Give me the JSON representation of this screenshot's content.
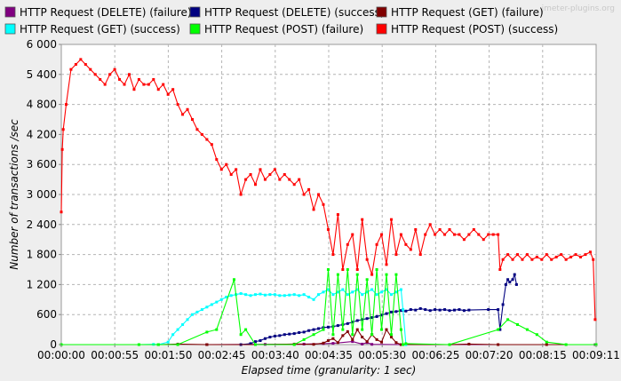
{
  "watermark": "jmeter-plugins.org",
  "chart_data": {
    "type": "line",
    "title": "",
    "xlabel": "Elapsed time (granularity: 1 sec)",
    "ylabel": "Number of transactions /sec",
    "ylim": [
      0,
      6000
    ],
    "xlim_seconds": [
      0,
      551
    ],
    "y_ticks": [
      "0",
      "600",
      "1 200",
      "1 800",
      "2 400",
      "3 000",
      "3 600",
      "4 200",
      "4 800",
      "5 400",
      "6 000"
    ],
    "x_ticks": [
      "00:00:00",
      "00:00:55",
      "00:01:50",
      "00:02:45",
      "00:03:40",
      "00:04:35",
      "00:05:30",
      "00:06:25",
      "00:07:20",
      "00:08:15",
      "00:09:11"
    ],
    "grid": true,
    "legend_position": "top",
    "series": [
      {
        "name": "HTTP Request (DELETE) (failure)",
        "color": "#800080",
        "points": [
          [
            150,
            0
          ],
          [
            210,
            5
          ],
          [
            250,
            10
          ],
          [
            270,
            20
          ],
          [
            280,
            25
          ],
          [
            300,
            60
          ],
          [
            310,
            10
          ],
          [
            315,
            40
          ],
          [
            320,
            5
          ],
          [
            350,
            0
          ],
          [
            550,
            0
          ]
        ]
      },
      {
        "name": "HTTP Request (DELETE) (success)",
        "color": "#000080",
        "points": [
          [
            150,
            0
          ],
          [
            185,
            0
          ],
          [
            195,
            20
          ],
          [
            200,
            60
          ],
          [
            205,
            80
          ],
          [
            210,
            120
          ],
          [
            215,
            150
          ],
          [
            220,
            170
          ],
          [
            225,
            180
          ],
          [
            230,
            200
          ],
          [
            235,
            210
          ],
          [
            240,
            220
          ],
          [
            245,
            240
          ],
          [
            250,
            250
          ],
          [
            255,
            280
          ],
          [
            260,
            300
          ],
          [
            265,
            320
          ],
          [
            270,
            340
          ],
          [
            275,
            350
          ],
          [
            280,
            360
          ],
          [
            285,
            380
          ],
          [
            290,
            400
          ],
          [
            295,
            420
          ],
          [
            300,
            450
          ],
          [
            305,
            480
          ],
          [
            310,
            500
          ],
          [
            315,
            520
          ],
          [
            320,
            540
          ],
          [
            325,
            560
          ],
          [
            330,
            590
          ],
          [
            335,
            620
          ],
          [
            340,
            650
          ],
          [
            345,
            660
          ],
          [
            350,
            680
          ],
          [
            355,
            670
          ],
          [
            360,
            700
          ],
          [
            365,
            690
          ],
          [
            370,
            720
          ],
          [
            375,
            700
          ],
          [
            380,
            680
          ],
          [
            385,
            700
          ],
          [
            390,
            690
          ],
          [
            395,
            700
          ],
          [
            400,
            680
          ],
          [
            405,
            690
          ],
          [
            410,
            700
          ],
          [
            415,
            680
          ],
          [
            420,
            690
          ],
          [
            440,
            700
          ],
          [
            450,
            700
          ],
          [
            452,
            300
          ],
          [
            455,
            800
          ],
          [
            458,
            1200
          ],
          [
            460,
            1300
          ],
          [
            462,
            1250
          ],
          [
            465,
            1300
          ],
          [
            467,
            1400
          ],
          [
            469,
            1200
          ]
        ]
      },
      {
        "name": "HTTP Request (GET) (failure)",
        "color": "#800000",
        "points": [
          [
            0,
            0
          ],
          [
            100,
            0
          ],
          [
            120,
            10
          ],
          [
            150,
            0
          ],
          [
            200,
            0
          ],
          [
            240,
            10
          ],
          [
            260,
            5
          ],
          [
            270,
            30
          ],
          [
            275,
            80
          ],
          [
            280,
            120
          ],
          [
            285,
            40
          ],
          [
            290,
            180
          ],
          [
            295,
            260
          ],
          [
            300,
            100
          ],
          [
            305,
            300
          ],
          [
            310,
            150
          ],
          [
            315,
            60
          ],
          [
            320,
            200
          ],
          [
            325,
            100
          ],
          [
            330,
            50
          ],
          [
            335,
            300
          ],
          [
            340,
            150
          ],
          [
            345,
            40
          ],
          [
            350,
            0
          ],
          [
            400,
            0
          ],
          [
            420,
            10
          ],
          [
            450,
            0
          ],
          [
            500,
            0
          ],
          [
            551,
            0
          ]
        ]
      },
      {
        "name": "HTTP Request (GET) (success)",
        "color": "#00ffff",
        "points": [
          [
            0,
            0
          ],
          [
            80,
            0
          ],
          [
            95,
            5
          ],
          [
            100,
            0
          ],
          [
            110,
            50
          ],
          [
            115,
            200
          ],
          [
            120,
            300
          ],
          [
            125,
            400
          ],
          [
            130,
            500
          ],
          [
            135,
            600
          ],
          [
            140,
            650
          ],
          [
            145,
            700
          ],
          [
            150,
            750
          ],
          [
            155,
            800
          ],
          [
            160,
            850
          ],
          [
            165,
            900
          ],
          [
            170,
            950
          ],
          [
            175,
            980
          ],
          [
            180,
            1000
          ],
          [
            185,
            1020
          ],
          [
            190,
            1000
          ],
          [
            195,
            980
          ],
          [
            200,
            1000
          ],
          [
            205,
            1010
          ],
          [
            210,
            990
          ],
          [
            215,
            1000
          ],
          [
            220,
            1000
          ],
          [
            225,
            980
          ],
          [
            230,
            980
          ],
          [
            235,
            990
          ],
          [
            240,
            1000
          ],
          [
            245,
            980
          ],
          [
            250,
            1000
          ],
          [
            255,
            950
          ],
          [
            260,
            900
          ],
          [
            265,
            1000
          ],
          [
            270,
            1050
          ],
          [
            275,
            1100
          ],
          [
            280,
            1000
          ],
          [
            285,
            1050
          ],
          [
            290,
            1100
          ],
          [
            295,
            1000
          ],
          [
            300,
            1050
          ],
          [
            305,
            1100
          ],
          [
            310,
            1000
          ],
          [
            315,
            1050
          ],
          [
            320,
            1100
          ],
          [
            325,
            1000
          ],
          [
            330,
            1050
          ],
          [
            335,
            1100
          ],
          [
            340,
            1000
          ],
          [
            345,
            1050
          ],
          [
            350,
            1100
          ],
          [
            352,
            700
          ],
          [
            355,
            0
          ]
        ]
      },
      {
        "name": "HTTP Request (POST) (failure)",
        "color": "#00ff00",
        "points": [
          [
            0,
            0
          ],
          [
            80,
            0
          ],
          [
            100,
            0
          ],
          [
            120,
            0
          ],
          [
            150,
            250
          ],
          [
            160,
            300
          ],
          [
            178,
            1300
          ],
          [
            185,
            200
          ],
          [
            190,
            300
          ],
          [
            200,
            0
          ],
          [
            240,
            0
          ],
          [
            250,
            100
          ],
          [
            260,
            200
          ],
          [
            270,
            300
          ],
          [
            275,
            1500
          ],
          [
            280,
            200
          ],
          [
            285,
            1400
          ],
          [
            290,
            300
          ],
          [
            295,
            1500
          ],
          [
            300,
            200
          ],
          [
            305,
            1400
          ],
          [
            310,
            300
          ],
          [
            315,
            1300
          ],
          [
            320,
            200
          ],
          [
            325,
            1500
          ],
          [
            330,
            300
          ],
          [
            335,
            1400
          ],
          [
            340,
            200
          ],
          [
            345,
            1400
          ],
          [
            350,
            300
          ],
          [
            352,
            0
          ],
          [
            355,
            20
          ],
          [
            400,
            0
          ],
          [
            450,
            300
          ],
          [
            460,
            500
          ],
          [
            470,
            400
          ],
          [
            480,
            300
          ],
          [
            490,
            200
          ],
          [
            500,
            50
          ],
          [
            520,
            0
          ],
          [
            551,
            0
          ]
        ]
      },
      {
        "name": "HTTP Request (POST) (success)",
        "color": "#ff0000",
        "points": [
          [
            0,
            2650
          ],
          [
            1,
            3900
          ],
          [
            2,
            4300
          ],
          [
            5,
            4800
          ],
          [
            10,
            5500
          ],
          [
            15,
            5600
          ],
          [
            20,
            5700
          ],
          [
            25,
            5600
          ],
          [
            30,
            5500
          ],
          [
            35,
            5400
          ],
          [
            40,
            5300
          ],
          [
            45,
            5200
          ],
          [
            50,
            5400
          ],
          [
            55,
            5500
          ],
          [
            60,
            5300
          ],
          [
            65,
            5200
          ],
          [
            70,
            5400
          ],
          [
            75,
            5100
          ],
          [
            80,
            5300
          ],
          [
            85,
            5200
          ],
          [
            90,
            5200
          ],
          [
            95,
            5300
          ],
          [
            100,
            5100
          ],
          [
            105,
            5200
          ],
          [
            110,
            5000
          ],
          [
            115,
            5100
          ],
          [
            120,
            4800
          ],
          [
            125,
            4600
          ],
          [
            130,
            4700
          ],
          [
            135,
            4500
          ],
          [
            140,
            4300
          ],
          [
            145,
            4200
          ],
          [
            150,
            4100
          ],
          [
            155,
            4000
          ],
          [
            160,
            3700
          ],
          [
            165,
            3500
          ],
          [
            170,
            3600
          ],
          [
            175,
            3400
          ],
          [
            180,
            3500
          ],
          [
            185,
            3000
          ],
          [
            190,
            3300
          ],
          [
            195,
            3400
          ],
          [
            200,
            3200
          ],
          [
            205,
            3500
          ],
          [
            210,
            3300
          ],
          [
            215,
            3400
          ],
          [
            220,
            3500
          ],
          [
            225,
            3300
          ],
          [
            230,
            3400
          ],
          [
            235,
            3300
          ],
          [
            240,
            3200
          ],
          [
            245,
            3300
          ],
          [
            250,
            3000
          ],
          [
            255,
            3100
          ],
          [
            260,
            2700
          ],
          [
            265,
            3000
          ],
          [
            270,
            2800
          ],
          [
            275,
            2300
          ],
          [
            280,
            1800
          ],
          [
            285,
            2600
          ],
          [
            290,
            1500
          ],
          [
            295,
            2000
          ],
          [
            300,
            2200
          ],
          [
            305,
            1500
          ],
          [
            310,
            2500
          ],
          [
            315,
            1700
          ],
          [
            320,
            1400
          ],
          [
            325,
            2000
          ],
          [
            330,
            2200
          ],
          [
            335,
            1600
          ],
          [
            340,
            2500
          ],
          [
            345,
            1800
          ],
          [
            350,
            2200
          ],
          [
            355,
            2000
          ],
          [
            360,
            1900
          ],
          [
            365,
            2300
          ],
          [
            370,
            1800
          ],
          [
            375,
            2200
          ],
          [
            380,
            2400
          ],
          [
            385,
            2200
          ],
          [
            390,
            2300
          ],
          [
            395,
            2200
          ],
          [
            400,
            2300
          ],
          [
            405,
            2200
          ],
          [
            410,
            2200
          ],
          [
            415,
            2100
          ],
          [
            420,
            2200
          ],
          [
            425,
            2300
          ],
          [
            430,
            2200
          ],
          [
            435,
            2100
          ],
          [
            440,
            2200
          ],
          [
            445,
            2200
          ],
          [
            450,
            2200
          ],
          [
            452,
            1500
          ],
          [
            455,
            1700
          ],
          [
            460,
            1800
          ],
          [
            465,
            1700
          ],
          [
            470,
            1800
          ],
          [
            475,
            1700
          ],
          [
            480,
            1800
          ],
          [
            485,
            1700
          ],
          [
            490,
            1750
          ],
          [
            495,
            1700
          ],
          [
            500,
            1800
          ],
          [
            505,
            1700
          ],
          [
            510,
            1750
          ],
          [
            515,
            1800
          ],
          [
            520,
            1700
          ],
          [
            525,
            1750
          ],
          [
            530,
            1800
          ],
          [
            535,
            1750
          ],
          [
            540,
            1800
          ],
          [
            545,
            1850
          ],
          [
            548,
            1700
          ],
          [
            550,
            500
          ]
        ]
      }
    ]
  }
}
